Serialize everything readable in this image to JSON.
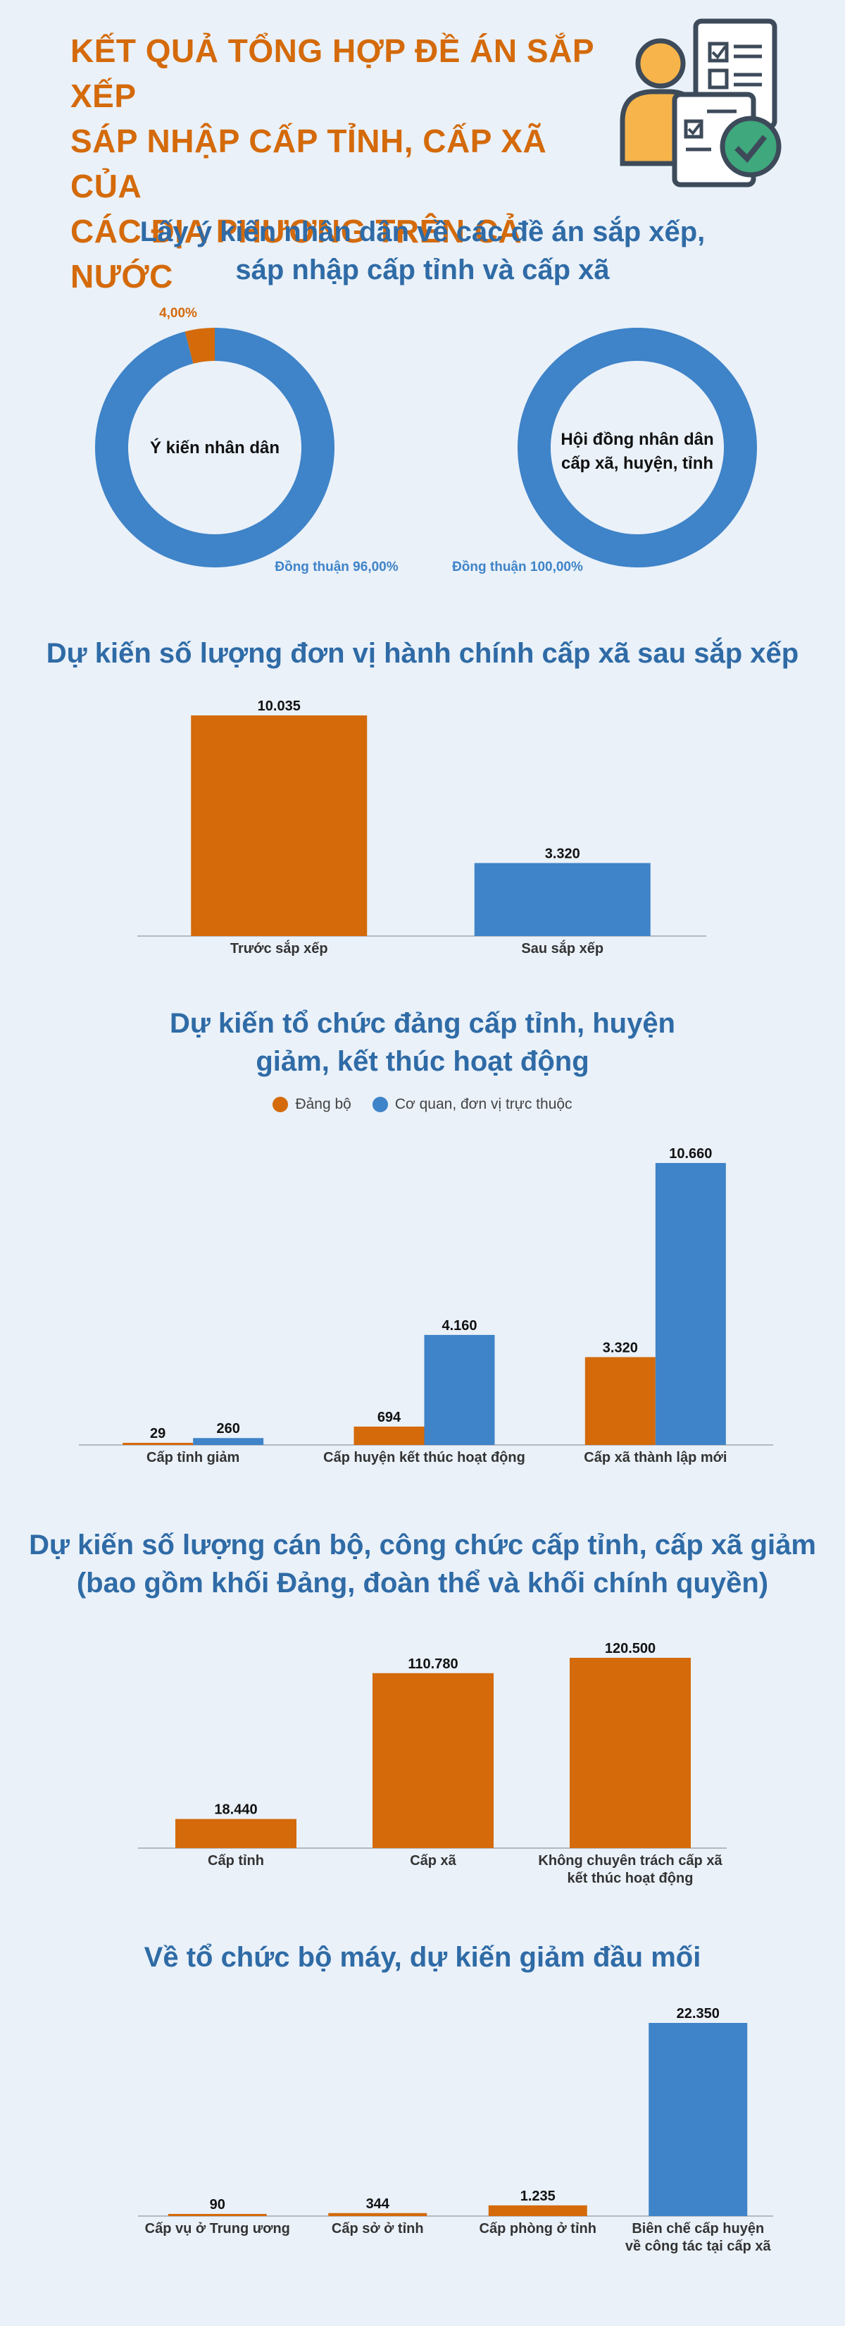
{
  "colors": {
    "orange": "#d46a0a",
    "blue": "#3f83c8",
    "title_blue": "#2f6ba6",
    "bg": "#eaf1f9"
  },
  "header": {
    "title": "KẾT QUẢ TỔNG HỢP ĐỀ ÁN SẮP XẾP\nSÁP NHẬP CẤP TỈNH, CẤP XÃ CỦA\nCÁC ĐỊA PHƯƠNG TRÊN CẢ NƯỚC",
    "icon": "person-document-checkmark-icon"
  },
  "sections": {
    "s1_title": "Lấy ý kiến nhân dân về các đề án sắp xếp,\nsáp nhập cấp tỉnh và cấp xã",
    "s2_title": "Dự kiến số lượng đơn vị hành chính cấp xã sau sắp xếp",
    "s3_title": "Dự kiến tổ chức đảng cấp tỉnh, huyện\ngiảm, kết thúc hoạt động",
    "s4_title": "Dự kiến số lượng cán bộ, công chức cấp tỉnh, cấp xã giảm\n(bao gồm khối Đảng, đoàn thể và khối chính quyền)",
    "s5_title": "Về tổ chức bộ máy, dự kiến giảm đầu mối"
  },
  "chart_data": [
    {
      "type": "pie",
      "center_label": "Ý kiến nhân dân",
      "slices": [
        {
          "name": "Đồng thuận",
          "value": 96.0,
          "label": "Đồng thuận 96,00%",
          "color": "#3f83c8"
        },
        {
          "name": "",
          "value": 4.0,
          "label": "4,00%",
          "color": "#d46a0a"
        }
      ]
    },
    {
      "type": "pie",
      "center_label": "Hội đồng nhân dân\ncấp xã, huyện, tỉnh",
      "slices": [
        {
          "name": "Đồng thuận",
          "value": 100.0,
          "label": "Đồng thuận 100,00%",
          "color": "#3f83c8"
        }
      ]
    },
    {
      "type": "bar",
      "categories": [
        "Trước sắp xếp",
        "Sau sắp xếp"
      ],
      "values": [
        10035,
        3320
      ],
      "value_labels": [
        "10.035",
        "3.320"
      ],
      "colors": [
        "#d46a0a",
        "#3f83c8"
      ],
      "ylim": [
        0,
        10035
      ]
    },
    {
      "type": "bar",
      "categories": [
        "Cấp tỉnh giảm",
        "Cấp huyện kết thúc hoạt động",
        "Cấp xã thành lập mới"
      ],
      "series": [
        {
          "name": "Đảng bộ",
          "values": [
            29,
            694,
            3320
          ],
          "value_labels": [
            "29",
            "694",
            "3.320"
          ],
          "color": "#d46a0a"
        },
        {
          "name": "Cơ quan, đơn vị trực thuộc",
          "values": [
            260,
            4160,
            10660
          ],
          "value_labels": [
            "260",
            "4.160",
            "10.660"
          ],
          "color": "#3f83c8"
        }
      ],
      "legend": "top",
      "ylim": [
        0,
        10660
      ]
    },
    {
      "type": "bar",
      "categories": [
        "Cấp tỉnh",
        "Cấp xã",
        "Không chuyên trách cấp xã\nkết thúc hoạt động"
      ],
      "values": [
        18440,
        110780,
        120500
      ],
      "value_labels": [
        "18.440",
        "110.780",
        "120.500"
      ],
      "colors": [
        "#d46a0a",
        "#d46a0a",
        "#d46a0a"
      ],
      "ylim": [
        0,
        120500
      ]
    },
    {
      "type": "bar",
      "categories": [
        "Cấp vụ ở Trung ương",
        "Cấp sở ở tỉnh",
        "Cấp phòng ở tỉnh",
        "Biên chế cấp huyện\nvề công tác tại cấp xã"
      ],
      "values": [
        90,
        344,
        1235,
        22350
      ],
      "value_labels": [
        "90",
        "344",
        "1.235",
        "22.350"
      ],
      "colors": [
        "#d46a0a",
        "#d46a0a",
        "#d46a0a",
        "#3f83c8"
      ],
      "ylim": [
        0,
        22350
      ]
    }
  ]
}
